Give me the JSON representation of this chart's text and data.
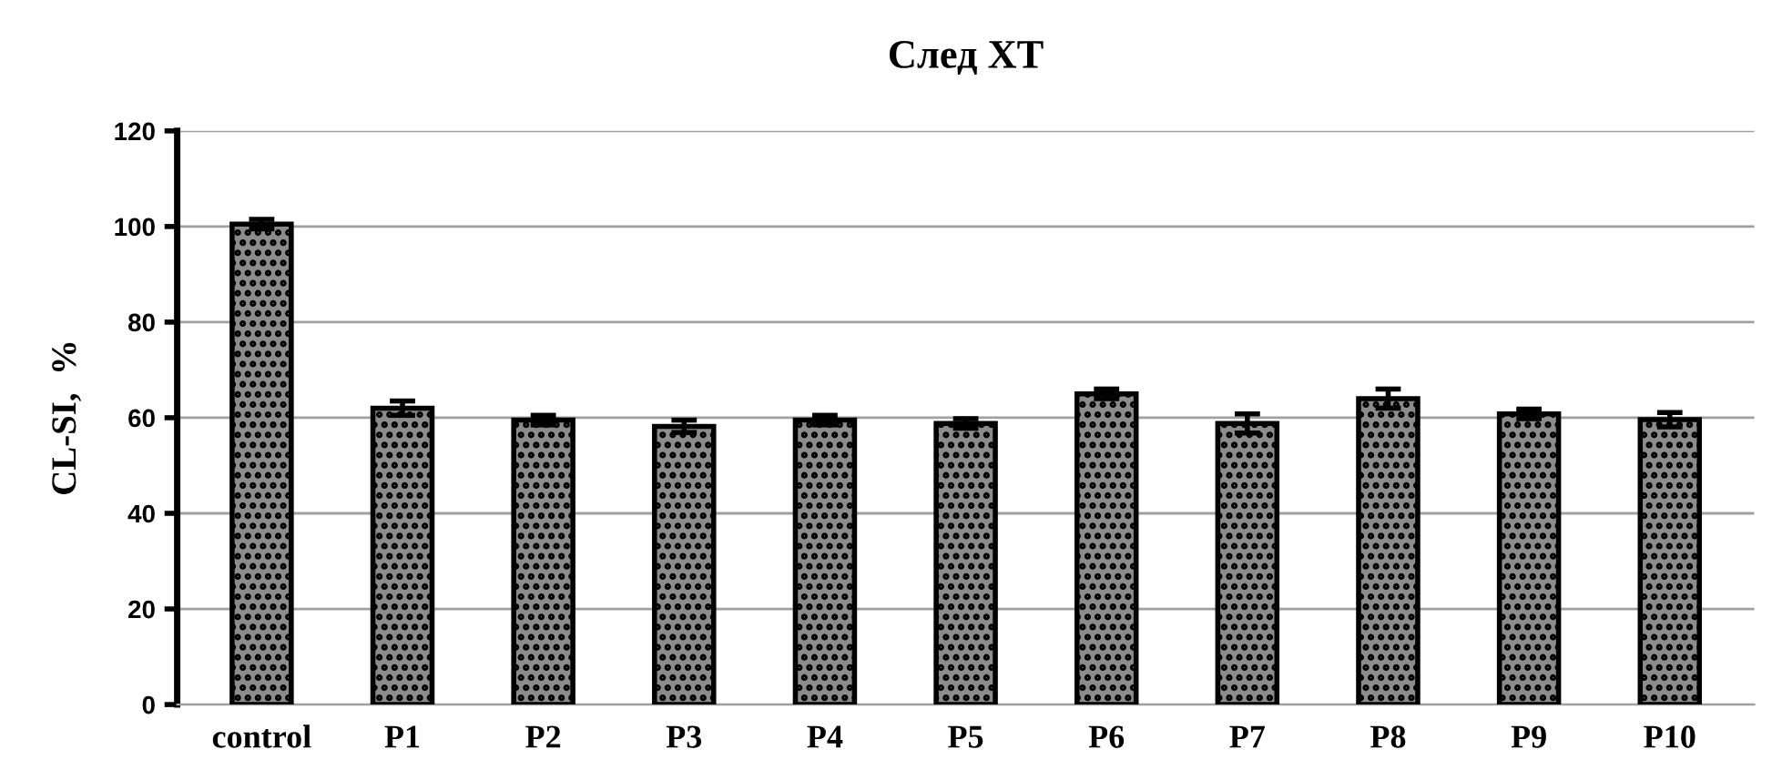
{
  "chart_data": {
    "type": "bar",
    "title": "След ХТ",
    "ylabel": "CL-SI,  %",
    "categories": [
      "control",
      "P1",
      "P2",
      "P3",
      "P4",
      "P5",
      "P6",
      "P7",
      "P8",
      "P9",
      "P10"
    ],
    "values": [
      100.5,
      62,
      59.5,
      58.2,
      59.5,
      58.8,
      65,
      58.8,
      64,
      60.8,
      59.6
    ],
    "errors": [
      1,
      1.5,
      1,
      1.3,
      1,
      1,
      1,
      2,
      2,
      1,
      1.5
    ],
    "color": "#000000",
    "ylim": [
      0,
      120
    ],
    "yticks": [
      0,
      20,
      40,
      60,
      80,
      100,
      120
    ],
    "grid": "y",
    "legend": false
  }
}
